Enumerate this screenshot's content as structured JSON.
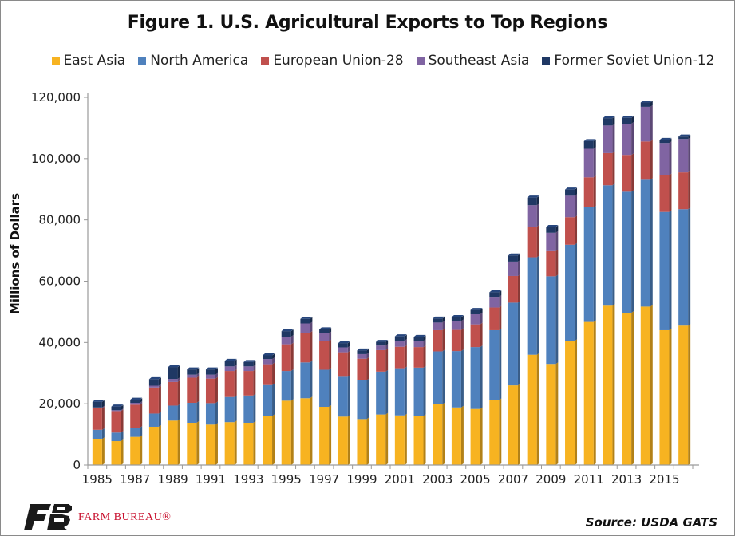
{
  "chart_data": {
    "type": "bar",
    "stacked": true,
    "title": "Figure 1. U.S. Agricultural Exports to Top Regions",
    "ylabel": "Millions of Dollars",
    "xlabel": "",
    "ylim": [
      0,
      120000
    ],
    "yticks": [
      "0",
      "20,000",
      "40,000",
      "60,000",
      "80,000",
      "100,000",
      "120,000"
    ],
    "yticks_values": [
      0,
      20000,
      40000,
      60000,
      80000,
      100000,
      120000
    ],
    "legend_position": "top",
    "categories": [
      1985,
      1986,
      1987,
      1988,
      1989,
      1990,
      1991,
      1992,
      1993,
      1994,
      1995,
      1996,
      1997,
      1998,
      1999,
      2000,
      2001,
      2002,
      2003,
      2004,
      2005,
      2006,
      2007,
      2008,
      2009,
      2010,
      2011,
      2012,
      2013,
      2014,
      2015,
      2016
    ],
    "x_tick_labels": [
      "1985",
      "1987",
      "1989",
      "1991",
      "1993",
      "1995",
      "1997",
      "1999",
      "2001",
      "2003",
      "2005",
      "2007",
      "2009",
      "2011",
      "2013",
      "2015"
    ],
    "series": [
      {
        "name": "East Asia",
        "color": "#f7b321",
        "values": [
          8500,
          7800,
          9200,
          12500,
          14500,
          13800,
          13200,
          14000,
          13800,
          16000,
          21000,
          21800,
          19000,
          15800,
          15000,
          16500,
          16200,
          16000,
          19800,
          18800,
          18300,
          21200,
          26000,
          36000,
          33000,
          40500,
          46700,
          52000,
          49700,
          51700,
          44000,
          45500
        ]
      },
      {
        "name": "North America",
        "color": "#4f81bd",
        "values": [
          3000,
          2800,
          3000,
          4300,
          4900,
          6500,
          7000,
          8200,
          8900,
          10100,
          9700,
          11700,
          12100,
          13000,
          12700,
          14000,
          15400,
          15800,
          17300,
          18400,
          20200,
          22800,
          27000,
          31800,
          28600,
          31400,
          37400,
          39300,
          39500,
          41400,
          38600,
          38000
        ]
      },
      {
        "name": "European Union-28",
        "color": "#c0504d",
        "values": [
          7000,
          7000,
          7500,
          8500,
          7700,
          8200,
          8000,
          8500,
          8000,
          6800,
          8700,
          9700,
          9300,
          8000,
          7000,
          7000,
          7000,
          6700,
          6900,
          6900,
          7400,
          7400,
          8700,
          10000,
          8200,
          9000,
          9800,
          10500,
          12000,
          12500,
          12000,
          12000
        ]
      },
      {
        "name": "Southeast Asia",
        "color": "#8064a2",
        "values": [
          300,
          300,
          600,
          600,
          1000,
          1000,
          1300,
          1500,
          1500,
          1700,
          2500,
          3000,
          2600,
          1600,
          1500,
          1500,
          2000,
          2000,
          2500,
          2900,
          3300,
          3500,
          4700,
          7000,
          6000,
          7000,
          9300,
          9000,
          10200,
          11300,
          10500,
          10900
        ]
      },
      {
        "name": "Former Soviet Union-12",
        "color": "#1f3864",
        "values": [
          1800,
          1200,
          1000,
          2100,
          3900,
          1700,
          1700,
          1800,
          1400,
          1200,
          1800,
          1500,
          1300,
          1400,
          1200,
          1200,
          1400,
          1300,
          1300,
          1300,
          1400,
          1500,
          2000,
          2500,
          1900,
          2000,
          2500,
          2400,
          1900,
          1400,
          1000,
          800
        ]
      }
    ]
  },
  "footer": {
    "logo_text": "FARM BUREAU®",
    "source": "Source: USDA GATS"
  },
  "colors": {
    "axis": "#9a9a9a",
    "frame": "#8a8a8a"
  }
}
